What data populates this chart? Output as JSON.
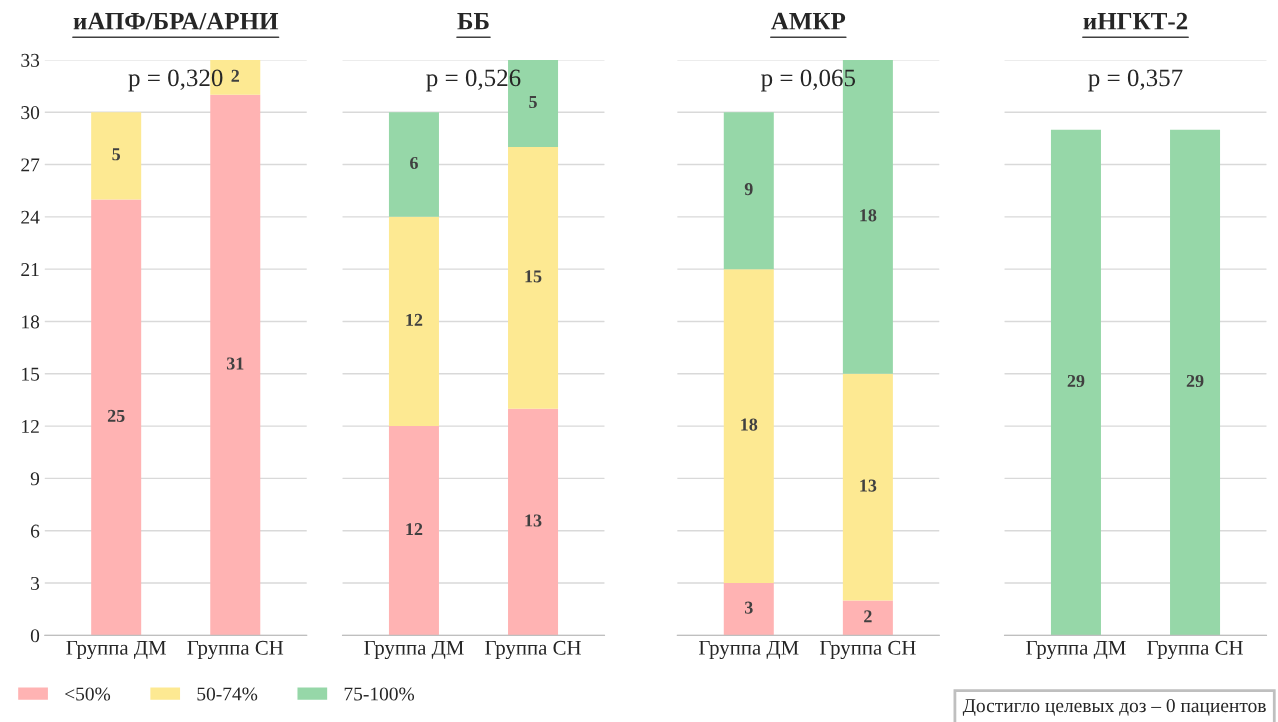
{
  "chart_data": [
    {
      "type": "bar",
      "title": "иАПФ/БРА/АРНИ",
      "categories": [
        "Группа ДМ",
        "Группа СН"
      ],
      "stacked": true,
      "data_labels": true,
      "ylim": [
        0,
        33
      ],
      "yticks": [
        0,
        3,
        6,
        9,
        12,
        15,
        18,
        21,
        24,
        27,
        30,
        33
      ],
      "grid": "y",
      "legend": "bottom left",
      "series": [
        {
          "name": "<50%",
          "color": "#ffb3b3",
          "values": [
            25,
            31
          ]
        },
        {
          "name": "50-74%",
          "color": "#fde992",
          "values": [
            5,
            2
          ]
        }
      ],
      "annotations": [
        "p = 0,320"
      ]
    },
    {
      "type": "bar",
      "title": "ББ",
      "categories": [
        "Группа ДМ",
        "Группа СН"
      ],
      "stacked": true,
      "data_labels": true,
      "ylim": [
        0,
        33
      ],
      "grid": "y",
      "tick_labels": "x",
      "series": [
        {
          "color": "#ffb3b3",
          "values": [
            12,
            13
          ]
        },
        {
          "color": "#fde992",
          "values": [
            12,
            15
          ]
        },
        {
          "color": "#96d7a8",
          "values": [
            6,
            5
          ]
        }
      ],
      "annotations": [
        "p = 0,526"
      ]
    },
    {
      "type": "bar",
      "title": "АМКР",
      "categories": [
        "Группа ДМ",
        "Группа СН"
      ],
      "stacked": true,
      "data_labels": true,
      "ylim": [
        0,
        33
      ],
      "grid": "y",
      "tick_labels": "x",
      "series": [
        {
          "color": "#ffb3b3",
          "values": [
            3,
            2
          ]
        },
        {
          "color": "#fde992",
          "values": [
            18,
            13
          ]
        },
        {
          "color": "#96d7a8",
          "values": [
            9,
            18
          ]
        }
      ],
      "annotations": [
        "p = 0,065"
      ]
    },
    {
      "type": "bar",
      "title": "иНГКТ-2",
      "categories": [
        "Группа ДМ",
        "Группа СН"
      ],
      "stacked": true,
      "data_labels": true,
      "ylim": [
        0,
        33
      ],
      "grid": "y",
      "tick_labels": "x",
      "legend": "bottom left",
      "series": [
        {
          "name": "75-100%",
          "color": "#96d7a8",
          "values": [
            29,
            29
          ]
        }
      ],
      "annotations": [
        "p = 0,357",
        "Достигло целевых доз – 0 пациентов"
      ]
    }
  ]
}
